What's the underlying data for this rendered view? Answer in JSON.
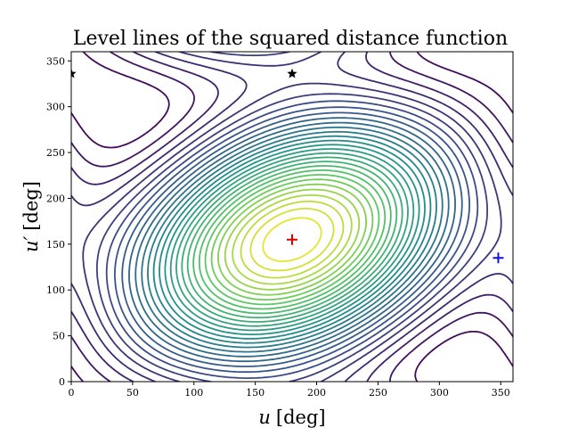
{
  "chart_data": {
    "type": "contour",
    "title": "Level lines of the squared distance function",
    "xlabel_var": "u",
    "xlabel_unit": "[deg]",
    "ylabel_var": "u′",
    "ylabel_unit": "[deg]",
    "xlim": [
      0,
      360
    ],
    "ylim": [
      0,
      360
    ],
    "xticks": [
      0,
      50,
      100,
      150,
      200,
      250,
      300,
      350
    ],
    "yticks": [
      0,
      50,
      100,
      150,
      200,
      250,
      300,
      350
    ],
    "colormap": [
      "#440154",
      "#3b528b",
      "#21918c",
      "#5ec962",
      "#fde725"
    ],
    "markers": [
      {
        "type": "plus",
        "x": 180,
        "y": 155,
        "color": "#e00000"
      },
      {
        "type": "plus",
        "x": 348,
        "y": 135,
        "color": "#1010e0"
      },
      {
        "type": "star",
        "x": 180,
        "y": 336,
        "color": "#000000"
      },
      {
        "type": "star",
        "x": 0,
        "y": 336,
        "color": "#000000"
      }
    ]
  }
}
